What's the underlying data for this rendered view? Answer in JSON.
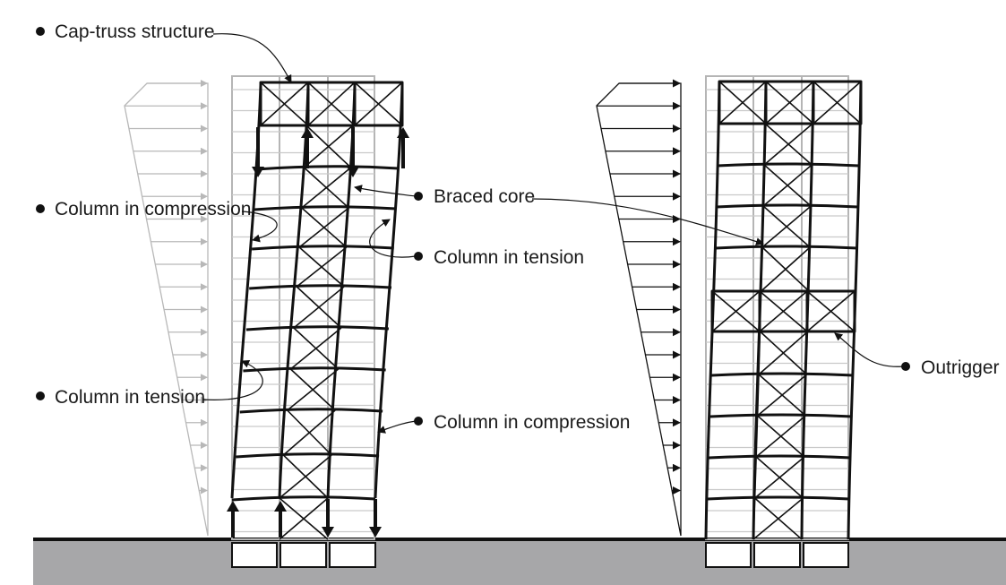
{
  "labels": {
    "cap_truss": "Cap-truss structure",
    "col_compression_left": "Column in compression",
    "col_tension_left": "Column in tension",
    "braced_core": "Braced core",
    "col_tension_mid": "Column in tension",
    "col_compression_mid": "Column in compression",
    "outrigger": "Outrigger"
  },
  "colors": {
    "line": "#111111",
    "ghost": "#b5b5b5",
    "ground": "#a7a7a9"
  },
  "icons": {
    "bullet": "filled-circle-bullet",
    "load_arrow": "arrow-right-icon",
    "force_arrow": "arrow-vertical-icon"
  }
}
